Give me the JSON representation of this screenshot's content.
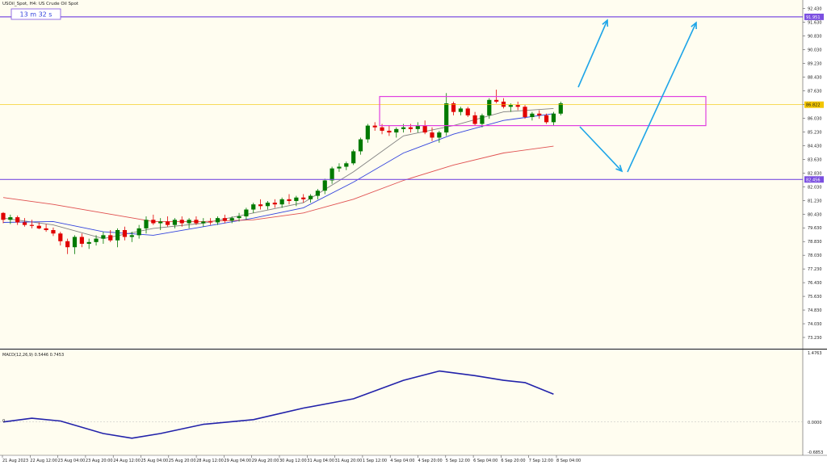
{
  "header": {
    "symbol_text": "USOil_Spot, H4: US Crude Oil Spot",
    "timer": "13 m 32 s"
  },
  "price_axis": {
    "labels": [
      "92.430",
      "91.630",
      "90.830",
      "90.030",
      "89.230",
      "88.430",
      "87.630",
      "86.830",
      "86.030",
      "85.230",
      "84.430",
      "83.630",
      "82.830",
      "82.030",
      "81.230",
      "80.430",
      "79.630",
      "78.830",
      "78.030",
      "77.230",
      "76.430",
      "75.630",
      "74.830",
      "74.030",
      "73.230"
    ],
    "resistance_tag": "91.951",
    "current_tag": "86.822",
    "support_tag": "82.456"
  },
  "macd": {
    "label": "MACD(12,26,9) 0.5446 0.7453",
    "axis_labels": [
      "1.4763",
      "0.0000",
      "-0.6853"
    ],
    "zero_left": "0"
  },
  "time_axis": {
    "labels": [
      "21 Aug 2023",
      "22 Aug 12:00",
      "23 Aug 04:00",
      "23 Aug 20:00",
      "24 Aug 12:00",
      "25 Aug 04:00",
      "25 Aug 20:00",
      "28 Aug 12:00",
      "29 Aug 04:00",
      "29 Aug 20:00",
      "30 Aug 12:00",
      "31 Aug 04:00",
      "31 Aug 20:00",
      "1 Sep 12:00",
      "4 Sep 04:00",
      "4 Sep 20:00",
      "5 Sep 12:00",
      "6 Sep 04:00",
      "6 Sep 20:00",
      "7 Sep 12:00",
      "8 Sep 04:00"
    ]
  },
  "colors": {
    "bull": "#007a00",
    "bear": "#e00000",
    "ma_short": "#808080",
    "ma_mid": "#3344dd",
    "ma_long": "#e05050",
    "level": "#7b4fe0",
    "box": "#e040e0",
    "arrow": "#1ea5e8",
    "macd": "#2222aa",
    "current": "#f2c500"
  },
  "chart_data": {
    "type": "candlestick",
    "title": "USOil_Spot, H4: US Crude Oil Spot",
    "ylim": [
      72.9,
      92.7
    ],
    "y_ticks": [
      92.43,
      91.63,
      90.83,
      90.03,
      89.23,
      88.43,
      87.63,
      86.83,
      86.03,
      85.23,
      84.43,
      83.63,
      82.83,
      82.03,
      81.23,
      80.43,
      79.63,
      78.83,
      78.03,
      77.23,
      76.43,
      75.63,
      74.83,
      74.03,
      73.23
    ],
    "candles": [
      [
        80.5,
        80.55,
        79.9,
        80.1
      ],
      [
        80.1,
        80.4,
        79.85,
        80.25
      ],
      [
        80.25,
        80.35,
        79.8,
        79.95
      ],
      [
        79.95,
        80.2,
        79.7,
        79.8
      ],
      [
        79.8,
        80.1,
        79.6,
        79.75
      ],
      [
        79.75,
        79.95,
        79.55,
        79.6
      ],
      [
        79.6,
        79.85,
        79.4,
        79.5
      ],
      [
        79.5,
        79.65,
        79.15,
        79.3
      ],
      [
        79.3,
        79.4,
        78.6,
        78.85
      ],
      [
        78.85,
        79.0,
        78.1,
        78.5
      ],
      [
        78.5,
        79.2,
        78.1,
        79.1
      ],
      [
        79.1,
        79.3,
        78.5,
        78.7
      ],
      [
        78.7,
        79.0,
        78.4,
        78.8
      ],
      [
        78.8,
        79.2,
        78.6,
        79.0
      ],
      [
        79.0,
        79.4,
        78.7,
        79.2
      ],
      [
        79.2,
        79.5,
        78.8,
        78.9
      ],
      [
        78.9,
        79.6,
        78.5,
        79.5
      ],
      [
        79.5,
        79.7,
        78.9,
        79.1
      ],
      [
        79.1,
        79.4,
        78.8,
        79.2
      ],
      [
        79.2,
        79.8,
        79.0,
        79.6
      ],
      [
        79.6,
        80.3,
        79.3,
        80.1
      ],
      [
        80.1,
        80.4,
        79.8,
        79.9
      ],
      [
        79.9,
        80.2,
        79.5,
        80.0
      ],
      [
        80.0,
        80.3,
        79.7,
        79.8
      ],
      [
        79.8,
        80.2,
        79.6,
        80.1
      ],
      [
        80.1,
        80.3,
        79.7,
        79.9
      ],
      [
        79.9,
        80.2,
        79.6,
        80.1
      ],
      [
        80.1,
        80.3,
        79.8,
        79.9
      ],
      [
        79.9,
        80.2,
        79.7,
        80.0
      ],
      [
        80.0,
        80.2,
        79.8,
        79.95
      ],
      [
        79.95,
        80.3,
        79.8,
        80.2
      ],
      [
        80.2,
        80.4,
        79.9,
        80.05
      ],
      [
        80.05,
        80.3,
        79.9,
        80.2
      ],
      [
        80.2,
        80.5,
        80.0,
        80.3
      ],
      [
        80.3,
        80.8,
        80.1,
        80.7
      ],
      [
        80.7,
        81.1,
        80.5,
        81.0
      ],
      [
        81.0,
        81.3,
        80.7,
        80.9
      ],
      [
        80.9,
        81.2,
        80.7,
        81.1
      ],
      [
        81.1,
        81.3,
        80.8,
        81.0
      ],
      [
        81.0,
        81.4,
        80.8,
        81.3
      ],
      [
        81.3,
        81.6,
        81.0,
        81.2
      ],
      [
        81.2,
        81.5,
        80.9,
        81.4
      ],
      [
        81.4,
        81.6,
        81.1,
        81.3
      ],
      [
        81.3,
        81.6,
        81.1,
        81.5
      ],
      [
        81.5,
        81.9,
        81.3,
        81.8
      ],
      [
        81.8,
        82.5,
        81.6,
        82.4
      ],
      [
        82.4,
        83.2,
        82.2,
        83.1
      ],
      [
        83.1,
        83.4,
        82.9,
        83.2
      ],
      [
        83.2,
        83.5,
        83.0,
        83.4
      ],
      [
        83.4,
        84.2,
        83.3,
        84.1
      ],
      [
        84.1,
        84.9,
        83.9,
        84.8
      ],
      [
        84.8,
        85.7,
        84.6,
        85.6
      ],
      [
        85.6,
        85.8,
        85.3,
        85.5
      ],
      [
        85.5,
        85.7,
        85.1,
        85.3
      ],
      [
        85.3,
        85.6,
        85.0,
        85.2
      ],
      [
        85.2,
        85.5,
        84.9,
        85.4
      ],
      [
        85.4,
        85.7,
        85.2,
        85.5
      ],
      [
        85.5,
        85.7,
        85.2,
        85.4
      ],
      [
        85.4,
        85.8,
        85.2,
        85.6
      ],
      [
        85.6,
        85.9,
        85.1,
        85.2
      ],
      [
        85.2,
        85.5,
        84.7,
        84.9
      ],
      [
        84.9,
        85.3,
        84.6,
        85.2
      ],
      [
        85.2,
        87.5,
        85.0,
        86.9
      ],
      [
        86.9,
        87.0,
        86.2,
        86.4
      ],
      [
        86.4,
        86.7,
        86.2,
        86.6
      ],
      [
        86.6,
        86.7,
        86.1,
        86.2
      ],
      [
        86.2,
        86.4,
        85.6,
        85.7
      ],
      [
        85.7,
        86.3,
        85.5,
        86.2
      ],
      [
        86.2,
        87.2,
        86.0,
        87.1
      ],
      [
        87.1,
        87.7,
        86.9,
        87.0
      ],
      [
        87.0,
        87.2,
        86.6,
        86.7
      ],
      [
        86.7,
        86.9,
        86.4,
        86.8
      ],
      [
        86.8,
        87.0,
        86.5,
        86.7
      ],
      [
        86.7,
        86.8,
        86.0,
        86.1
      ],
      [
        86.1,
        86.4,
        85.9,
        86.3
      ],
      [
        86.3,
        86.5,
        86.0,
        86.2
      ],
      [
        86.2,
        86.3,
        85.7,
        85.8
      ],
      [
        85.8,
        86.4,
        85.6,
        86.3
      ],
      [
        86.3,
        87.0,
        86.2,
        86.9
      ]
    ],
    "moving_averages": [
      {
        "color": "gray",
        "points": [
          [
            0,
            80.2
          ],
          [
            7,
            79.8
          ],
          [
            14,
            79.0
          ],
          [
            21,
            79.6
          ],
          [
            28,
            79.9
          ],
          [
            35,
            80.5
          ],
          [
            42,
            81.1
          ],
          [
            49,
            82.9
          ],
          [
            56,
            85.0
          ],
          [
            63,
            85.6
          ],
          [
            70,
            86.4
          ],
          [
            77,
            86.6
          ]
        ]
      },
      {
        "color": "blue",
        "points": [
          [
            0,
            79.95
          ],
          [
            7,
            80.0
          ],
          [
            14,
            79.4
          ],
          [
            21,
            79.2
          ],
          [
            28,
            79.7
          ],
          [
            35,
            80.2
          ],
          [
            42,
            80.8
          ],
          [
            49,
            82.3
          ],
          [
            56,
            84.0
          ],
          [
            63,
            85.1
          ],
          [
            70,
            85.9
          ],
          [
            77,
            86.3
          ]
        ]
      },
      {
        "color": "red",
        "points": [
          [
            0,
            81.4
          ],
          [
            7,
            81.0
          ],
          [
            14,
            80.5
          ],
          [
            21,
            80.0
          ],
          [
            28,
            80.0
          ],
          [
            35,
            80.1
          ],
          [
            42,
            80.5
          ],
          [
            49,
            81.3
          ],
          [
            56,
            82.4
          ],
          [
            63,
            83.3
          ],
          [
            70,
            84.0
          ],
          [
            77,
            84.4
          ]
        ]
      }
    ],
    "levels": [
      91.951,
      86.822,
      82.456
    ],
    "range_box": {
      "from_candle": 53,
      "to_candle": 80,
      "low": 85.6,
      "high": 87.3
    },
    "arrows": [
      {
        "from": [
          77,
          87.0
        ],
        "to": [
          80,
          91.5
        ]
      },
      {
        "from": [
          77,
          86.0
        ],
        "to": [
          82,
          82.8
        ]
      },
      {
        "from": [
          83,
          82.8
        ],
        "to": [
          91,
          91.6
        ]
      }
    ],
    "macd_series": {
      "ylim": [
        -0.6853,
        1.4763
      ],
      "points": [
        [
          0,
          0
        ],
        [
          4,
          0.08
        ],
        [
          8,
          0.02
        ],
        [
          14,
          -0.25
        ],
        [
          18,
          -0.35
        ],
        [
          22,
          -0.25
        ],
        [
          28,
          -0.05
        ],
        [
          35,
          0.05
        ],
        [
          42,
          0.3
        ],
        [
          49,
          0.5
        ],
        [
          56,
          0.9
        ],
        [
          61,
          1.1
        ],
        [
          66,
          1.0
        ],
        [
          70,
          0.9
        ],
        [
          73,
          0.85
        ],
        [
          77,
          0.6
        ]
      ]
    }
  }
}
